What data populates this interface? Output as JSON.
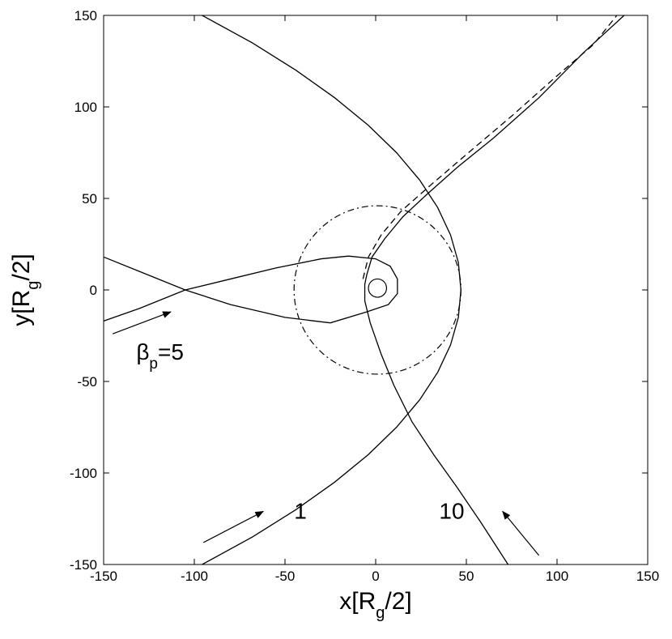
{
  "chart_data": {
    "type": "line",
    "xlabel": [
      "x[R",
      "g",
      "/2]"
    ],
    "ylabel": [
      "y[R",
      "g",
      "/2]"
    ],
    "xlim": [
      -150,
      150
    ],
    "ylim": [
      -150,
      150
    ],
    "xticks": [
      -150,
      -100,
      -50,
      0,
      50,
      100,
      150
    ],
    "yticks": [
      -150,
      -100,
      -50,
      0,
      50,
      100,
      150
    ],
    "color": "#000000",
    "series": [
      {
        "style": "solid",
        "x": [
          -95.7,
          -68.0,
          -43.9,
          -22.6,
          -4.1,
          11.5,
          24.3,
          34.2,
          41.3,
          45.6,
          47,
          45.6,
          41.3,
          34.2,
          24.3,
          11.5,
          -4.1,
          -22.6,
          -43.9,
          -68.0,
          -95.7
        ],
        "y": [
          -150,
          -135,
          -120,
          -105,
          -90,
          -75,
          -60,
          -45,
          -30,
          -15,
          0,
          15,
          30,
          45,
          60,
          75,
          90,
          105,
          120,
          135,
          150
        ]
      },
      {
        "style": "solid",
        "x": [
          73,
          58,
          45,
          32,
          20,
          10,
          3,
          -3,
          -6,
          -6,
          -5,
          -2,
          5,
          15,
          28,
          45,
          65,
          90,
          115,
          137
        ],
        "y": [
          -150,
          -127,
          -108,
          -90,
          -72,
          -52,
          -35,
          -18,
          -6,
          3,
          8,
          18,
          28,
          40,
          52,
          67,
          83,
          105,
          130,
          150
        ]
      },
      {
        "style": "dashed",
        "x": [
          -7,
          -4,
          3,
          14,
          30,
          50,
          75,
          100,
          120,
          133
        ],
        "y": [
          6,
          18,
          30,
          43,
          57,
          74,
          95,
          117,
          134,
          150
        ]
      },
      {
        "style": "solid",
        "x": [
          -150,
          -130,
          -105,
          -80,
          -55,
          -30,
          -15,
          0,
          8,
          12,
          12,
          7,
          -5,
          -25,
          -50,
          -80,
          -105,
          -130,
          -150
        ],
        "y": [
          -17,
          -10,
          0,
          6,
          12,
          17,
          18.5,
          17,
          13,
          6,
          -2,
          -8,
          -12,
          -18,
          -15,
          -8,
          0,
          10,
          18
        ]
      }
    ],
    "circles": [
      {
        "style": "solid",
        "center": [
          1,
          1
        ],
        "r": 5
      },
      {
        "style": "dashdot",
        "center": [
          1,
          0
        ],
        "r": 46
      }
    ],
    "annotations": [
      {
        "text": [
          "β",
          "p",
          "=5"
        ],
        "xy": [
          -132,
          -38
        ]
      },
      {
        "text": [
          "1"
        ],
        "xy": [
          -45,
          -125
        ]
      },
      {
        "text": [
          "10"
        ],
        "xy": [
          35,
          -125
        ]
      }
    ],
    "arrows": [
      {
        "from": [
          -145,
          -24
        ],
        "to": [
          -113,
          -12
        ]
      },
      {
        "from": [
          -95,
          -138
        ],
        "to": [
          -62,
          -121
        ]
      },
      {
        "from": [
          90,
          -145
        ],
        "to": [
          70,
          -121
        ]
      }
    ]
  }
}
